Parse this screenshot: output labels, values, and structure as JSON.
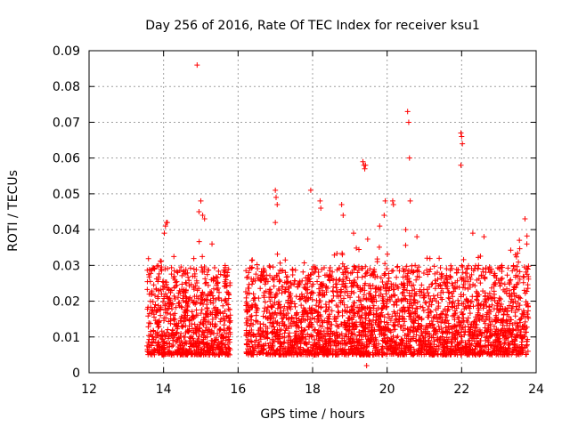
{
  "chart_data": {
    "type": "scatter",
    "title": "Day 256 of 2016, Rate Of TEC Index for receiver ksu1",
    "xlabel": "GPS time / hours",
    "ylabel": "ROTI / TECUs",
    "xlim": [
      12,
      24
    ],
    "ylim": [
      0,
      0.09
    ],
    "xticks": [
      "12",
      "14",
      "16",
      "18",
      "20",
      "22",
      "24"
    ],
    "yticks": [
      "0",
      "0.01",
      "0.02",
      "0.03",
      "0.04",
      "0.05",
      "0.06",
      "0.07",
      "0.08",
      "0.09"
    ],
    "xtick_values": [
      12,
      14,
      16,
      18,
      20,
      22,
      24
    ],
    "ytick_values": [
      0,
      0.01,
      0.02,
      0.03,
      0.04,
      0.05,
      0.06,
      0.07,
      0.08,
      0.09
    ],
    "grid": true,
    "marker": "+",
    "color": "#ff0000",
    "observation_segments": [
      {
        "start": 13.55,
        "end": 15.8
      },
      {
        "start": 16.2,
        "end": 23.8
      }
    ],
    "typical_range": [
      0.005,
      0.03
    ],
    "series": [
      {
        "name": "ROTI",
        "points": [
          [
            14.9,
            0.086
          ],
          [
            14.08,
            0.042
          ],
          [
            14.05,
            0.041
          ],
          [
            14.02,
            0.039
          ],
          [
            14.1,
            0.042
          ],
          [
            15.0,
            0.048
          ],
          [
            15.05,
            0.044
          ],
          [
            15.1,
            0.043
          ],
          [
            14.95,
            0.045
          ],
          [
            15.3,
            0.036
          ],
          [
            17.0,
            0.051
          ],
          [
            17.02,
            0.049
          ],
          [
            17.05,
            0.047
          ],
          [
            17.0,
            0.042
          ],
          [
            17.95,
            0.051
          ],
          [
            18.2,
            0.048
          ],
          [
            18.22,
            0.046
          ],
          [
            18.78,
            0.047
          ],
          [
            18.82,
            0.044
          ],
          [
            19.1,
            0.039
          ],
          [
            19.35,
            0.059
          ],
          [
            19.38,
            0.058
          ],
          [
            19.4,
            0.057
          ],
          [
            19.42,
            0.058
          ],
          [
            19.8,
            0.041
          ],
          [
            19.95,
            0.048
          ],
          [
            19.92,
            0.044
          ],
          [
            20.15,
            0.048
          ],
          [
            20.17,
            0.047
          ],
          [
            20.5,
            0.04
          ],
          [
            20.55,
            0.073
          ],
          [
            20.58,
            0.07
          ],
          [
            20.6,
            0.06
          ],
          [
            20.62,
            0.048
          ],
          [
            20.8,
            0.038
          ],
          [
            21.98,
            0.067
          ],
          [
            22.0,
            0.066
          ],
          [
            22.02,
            0.064
          ],
          [
            21.98,
            0.058
          ],
          [
            22.3,
            0.039
          ],
          [
            22.6,
            0.038
          ],
          [
            23.7,
            0.043
          ],
          [
            23.55,
            0.037
          ],
          [
            23.75,
            0.036
          ],
          [
            19.45,
            0.002
          ]
        ]
      }
    ]
  }
}
